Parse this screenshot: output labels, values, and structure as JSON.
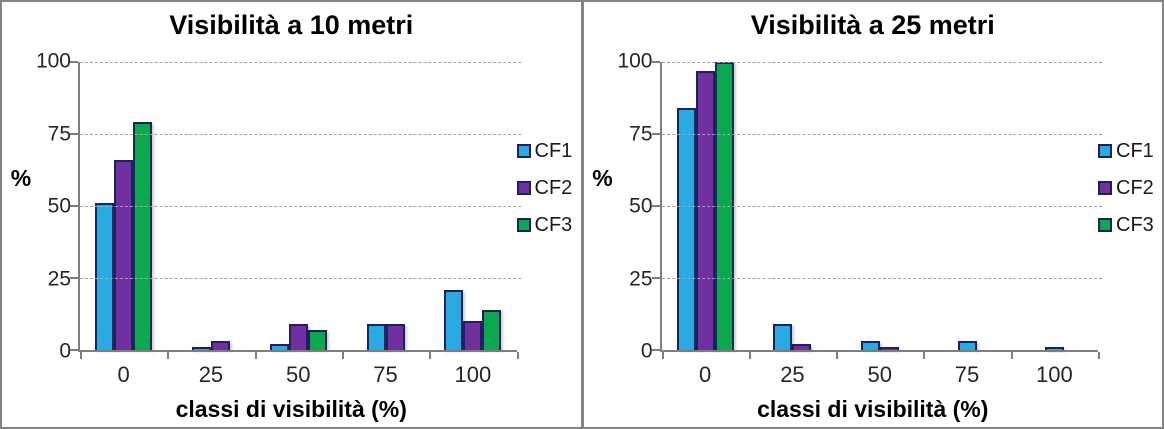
{
  "figure": {
    "border_color": "#848484",
    "divider_color": "#848484",
    "background": "#ffffff"
  },
  "palette": {
    "CF1": "#29abe2",
    "CF2": "#7030a0",
    "CF3": "#0ca84f",
    "bar_border": "#1c2260",
    "axis": "#7f7f7f",
    "gridline": "#a3a3a3",
    "tick_text": "#262626"
  },
  "chart_data": [
    {
      "type": "bar",
      "title": "Visibilità a 10 metri",
      "xlabel": "classi di visibilità (%)",
      "ylabel": "%",
      "categories": [
        "0",
        "25",
        "50",
        "75",
        "100"
      ],
      "y_ticks": [
        100,
        75,
        50,
        25,
        0
      ],
      "ylim": [
        0,
        100
      ],
      "grid": "dashed-horizontal",
      "legend_position": "right",
      "legend": [
        "CF1",
        "CF2",
        "CF3"
      ],
      "series": [
        {
          "name": "CF1",
          "values": [
            51,
            1,
            2,
            9,
            21
          ]
        },
        {
          "name": "CF2",
          "values": [
            66,
            3,
            9,
            9,
            10
          ]
        },
        {
          "name": "CF3",
          "values": [
            79,
            0,
            7,
            0,
            14
          ]
        }
      ]
    },
    {
      "type": "bar",
      "title": "Visibilità a 25 metri",
      "xlabel": "classi di visibilità (%)",
      "ylabel": "%",
      "categories": [
        "0",
        "25",
        "50",
        "75",
        "100"
      ],
      "y_ticks": [
        100,
        75,
        50,
        25,
        0
      ],
      "ylim": [
        0,
        100
      ],
      "grid": "dashed-horizontal",
      "legend_position": "right",
      "legend": [
        "CF1",
        "CF2",
        "CF3"
      ],
      "series": [
        {
          "name": "CF1",
          "values": [
            84,
            9,
            3,
            3,
            1
          ]
        },
        {
          "name": "CF2",
          "values": [
            97,
            2,
            1,
            0,
            0
          ]
        },
        {
          "name": "CF3",
          "values": [
            100,
            0,
            0,
            0,
            0
          ]
        }
      ]
    }
  ]
}
